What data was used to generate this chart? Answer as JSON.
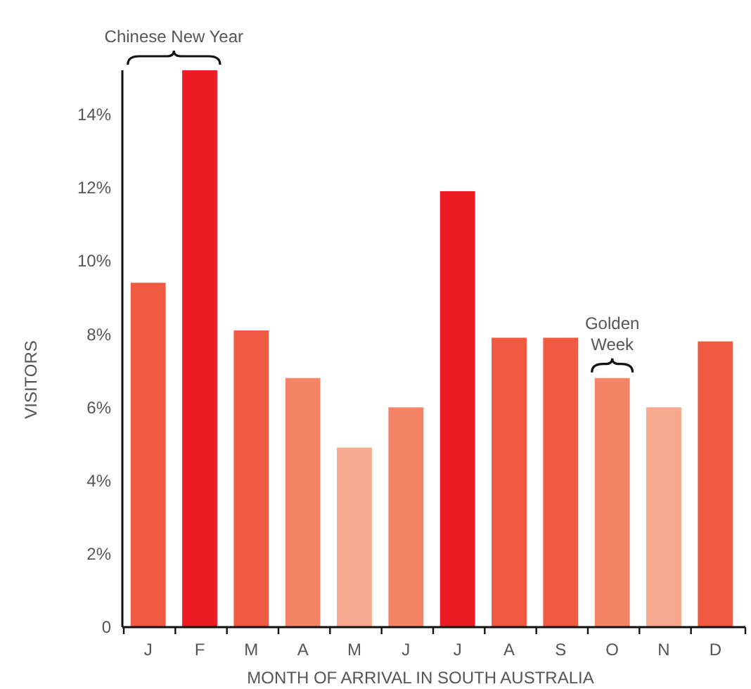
{
  "chart_data": {
    "type": "bar",
    "xlabel": "MONTH OF ARRIVAL IN SOUTH AUSTRALIA",
    "ylabel": "VISITORS",
    "categories": [
      "J",
      "F",
      "M",
      "A",
      "M",
      "J",
      "J",
      "A",
      "S",
      "O",
      "N",
      "D"
    ],
    "values": [
      9.4,
      15.2,
      8.1,
      6.8,
      4.9,
      6.0,
      11.9,
      7.9,
      7.9,
      6.8,
      6.0,
      7.8
    ],
    "colors": [
      "#f05a40",
      "#ed1c24",
      "#f05a40",
      "#f58466",
      "#f9a98d",
      "#f58466",
      "#ed1c24",
      "#f05a40",
      "#f05a40",
      "#f58466",
      "#f9a98d",
      "#f05a40"
    ],
    "ylim": [
      0,
      15.2
    ],
    "yticks": [
      0,
      {
        "value": 2,
        "label": "2%"
      },
      {
        "value": 4,
        "label": "4%"
      },
      {
        "value": 6,
        "label": "6%"
      },
      {
        "value": 8,
        "label": "8%"
      },
      {
        "value": 10,
        "label": "10%"
      },
      {
        "value": 12,
        "label": "12%"
      },
      {
        "value": 14,
        "label": "14%"
      }
    ],
    "annotations": [
      "Chinese New Year",
      "Golden Week"
    ]
  }
}
